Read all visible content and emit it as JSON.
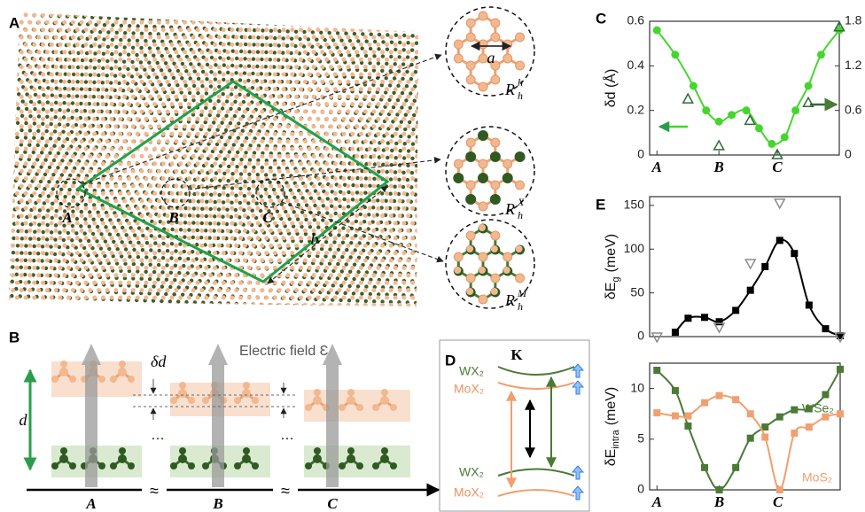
{
  "panel_labels": [
    "A",
    "B",
    "C",
    "D",
    "E"
  ],
  "panel_a": {
    "sites": [
      "A",
      "B",
      "C"
    ],
    "moire_length": "b",
    "insets": [
      {
        "lattice_constant": "a",
        "label": {
          "main": "R",
          "sub": "h",
          "sup": "h"
        }
      },
      {
        "label": {
          "main": "R",
          "sub": "h",
          "sup": "X"
        }
      },
      {
        "label": {
          "main": "R",
          "sub": "h",
          "sup": "M"
        }
      }
    ]
  },
  "panel_b": {
    "field_label": "Electric field Ɛ",
    "delta_d": "δd",
    "d": "d",
    "ellipsis": "…",
    "break": "≈",
    "sites": [
      "A",
      "B",
      "C"
    ]
  },
  "panel_d": {
    "point": "K",
    "upper": [
      "WX₂",
      "MoX₂"
    ],
    "lower": [
      "WX₂",
      "MoX₂"
    ]
  },
  "chart_data": [
    {
      "type": "scatter",
      "y_label": "δd (Å)",
      "xlim": [
        -0.04,
        1.0
      ],
      "xticks": [
        {
          "value": 0,
          "label": "A"
        },
        {
          "value": 0.34,
          "label": "B"
        },
        {
          "value": 0.66,
          "label": "C"
        }
      ],
      "ylim": [
        0,
        0.6
      ],
      "yticks": [
        0,
        0.2,
        0.4,
        0.6
      ],
      "y2lim": [
        0,
        1.8
      ],
      "y2ticks": [
        0,
        0.6,
        1.2,
        1.8
      ],
      "series": [
        {
          "color": "#45d62e",
          "marker": "circle",
          "fit": true,
          "x": [
            0,
            0.1,
            0.2,
            0.27,
            0.34,
            0.41,
            0.49,
            0.56,
            0.63,
            0.7,
            0.76,
            0.83,
            0.9,
            1.0
          ],
          "values": [
            0.56,
            0.45,
            0.31,
            0.2,
            0.15,
            0.18,
            0.2,
            0.12,
            0.05,
            0.08,
            0.2,
            0.31,
            0.45,
            0.56
          ]
        },
        {
          "color": "#2f6a3a",
          "marker": "triangle-up",
          "hollow": true,
          "axis": "y2",
          "x": [
            0.17,
            0.34,
            0.51,
            0.66,
            0.83,
            1.0
          ],
          "values": [
            0.75,
            0.12,
            0.46,
            0,
            0.7,
            1.72
          ]
        }
      ]
    },
    {
      "type": "scatter",
      "y_label": {
        "text": "δE",
        "sub": "g",
        "unit": "(meV)"
      },
      "xlim": [
        -0.04,
        1.0
      ],
      "ylim": [
        0,
        160
      ],
      "yticks": [
        0,
        50,
        100,
        150
      ],
      "series": [
        {
          "color": "#000000",
          "marker": "square",
          "fit": true,
          "x": [
            0.1,
            0.17,
            0.26,
            0.34,
            0.43,
            0.51,
            0.59,
            0.67,
            0.75,
            0.83,
            0.92,
            1.0
          ],
          "values": [
            5,
            21,
            22,
            17,
            30,
            53,
            80,
            110,
            95,
            36,
            9,
            1
          ]
        },
        {
          "color": "#8c8c8c",
          "marker": "triangle-down",
          "hollow": true,
          "x": [
            0,
            0.34,
            0.51,
            0.67,
            1.0
          ],
          "values": [
            0,
            11,
            84,
            153,
            0
          ]
        }
      ]
    },
    {
      "type": "scatter",
      "y_label": {
        "text": "δE",
        "sub": "intra",
        "unit": "(meV)"
      },
      "xlim": [
        -0.04,
        1.0
      ],
      "xticks": [
        {
          "value": 0,
          "label": "A"
        },
        {
          "value": 0.34,
          "label": "B"
        },
        {
          "value": 0.66,
          "label": "C"
        }
      ],
      "ylim": [
        0,
        12.5
      ],
      "yticks": [
        0,
        5,
        10
      ],
      "series": [
        {
          "name": "WSe₂",
          "color": "#4a7a35",
          "marker": "square",
          "fit": true,
          "x": [
            0,
            0.1,
            0.17,
            0.26,
            0.34,
            0.43,
            0.51,
            0.59,
            0.67,
            0.75,
            0.83,
            0.92,
            1.0
          ],
          "values": [
            11.8,
            9.8,
            6.3,
            2.2,
            0,
            2.2,
            5.1,
            6.2,
            7.2,
            7.9,
            8.0,
            9.4,
            11.9
          ]
        },
        {
          "name": "MoS₂",
          "color": "#f0a070",
          "marker": "square",
          "fit": true,
          "x": [
            0,
            0.1,
            0.17,
            0.26,
            0.34,
            0.43,
            0.51,
            0.59,
            0.67,
            0.75,
            0.83,
            0.92,
            1.0
          ],
          "values": [
            7.6,
            7.3,
            7.3,
            8.6,
            9.3,
            8.9,
            7.5,
            5.2,
            0,
            5.6,
            6.2,
            7.2,
            7.5
          ]
        }
      ]
    }
  ]
}
